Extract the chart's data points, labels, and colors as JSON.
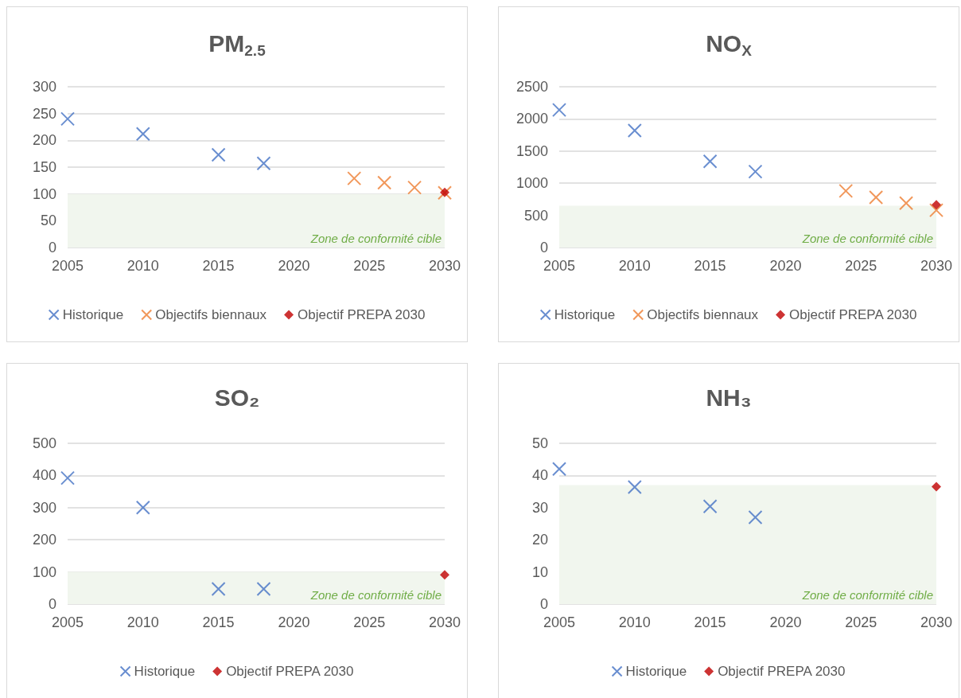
{
  "chart_data": [
    {
      "type": "scatter",
      "title": "PM$_{2.5}$",
      "xlim": [
        2005,
        2030
      ],
      "xticks": [
        2005,
        2010,
        2015,
        2020,
        2025,
        2030
      ],
      "ylim": [
        0,
        300
      ],
      "yticks": [
        0,
        50,
        100,
        150,
        200,
        250,
        300
      ],
      "grid": "y",
      "legend": "bottom",
      "bands": [
        {
          "axis": "y",
          "from": 0,
          "to": 100,
          "label": "Zone de conformité cible",
          "color": "#f1f6ee"
        }
      ],
      "series": [
        {
          "name": "Historique",
          "color": "#4472c4",
          "marker": "cross",
          "x": [
            2005,
            2010,
            2015,
            2018
          ],
          "values": [
            240,
            212,
            173,
            157
          ]
        },
        {
          "name": "Objectifs biennaux",
          "color": "#ed7d31",
          "marker": "cross",
          "x": [
            2024,
            2026,
            2028,
            2030
          ],
          "values": [
            129,
            121,
            112,
            102
          ]
        },
        {
          "name": "Objectif PREPA 2030",
          "color": "#c00000",
          "marker": "diamond",
          "x": [
            2030
          ],
          "values": [
            103
          ]
        }
      ]
    },
    {
      "type": "scatter",
      "title": "NO$_{X}$",
      "xlim": [
        2005,
        2030
      ],
      "xticks": [
        2005,
        2010,
        2015,
        2020,
        2025,
        2030
      ],
      "ylim": [
        0,
        2500
      ],
      "yticks": [
        0,
        500,
        1000,
        1500,
        2000,
        2500
      ],
      "grid": "y",
      "legend": "bottom",
      "bands": [
        {
          "axis": "y",
          "from": 0,
          "to": 650,
          "label": "Zone de conformité cible",
          "color": "#f1f6ee"
        }
      ],
      "series": [
        {
          "name": "Historique",
          "color": "#4472c4",
          "marker": "cross",
          "x": [
            2005,
            2010,
            2015,
            2018
          ],
          "values": [
            2140,
            1820,
            1340,
            1180
          ]
        },
        {
          "name": "Objectifs biennaux",
          "color": "#ed7d31",
          "marker": "cross",
          "x": [
            2024,
            2026,
            2028,
            2030
          ],
          "values": [
            880,
            780,
            690,
            580
          ]
        },
        {
          "name": "Objectif PREPA 2030",
          "color": "#c00000",
          "marker": "diamond",
          "x": [
            2030
          ],
          "values": [
            664
          ]
        }
      ]
    },
    {
      "type": "scatter",
      "title": "SO₂",
      "xlim": [
        2005,
        2030
      ],
      "xticks": [
        2005,
        2010,
        2015,
        2020,
        2025,
        2030
      ],
      "ylim": [
        0,
        500
      ],
      "yticks": [
        0,
        100,
        200,
        300,
        400,
        500
      ],
      "grid": "y",
      "legend": "bottom",
      "bands": [
        {
          "axis": "y",
          "from": 0,
          "to": 100,
          "label": "Zone de conformité cible",
          "color": "#f1f6ee"
        }
      ],
      "series": [
        {
          "name": "Historique",
          "color": "#4472c4",
          "marker": "cross",
          "x": [
            2005,
            2010,
            2015,
            2018
          ],
          "values": [
            392,
            300,
            47,
            47
          ]
        },
        {
          "name": "Objectif PREPA 2030",
          "color": "#c00000",
          "marker": "diamond",
          "x": [
            2030
          ],
          "values": [
            91
          ]
        }
      ]
    },
    {
      "type": "scatter",
      "title": "NH₃",
      "xlim": [
        2005,
        2030
      ],
      "xticks": [
        2005,
        2010,
        2015,
        2020,
        2025,
        2030
      ],
      "ylim": [
        0,
        50
      ],
      "yticks": [
        0,
        10,
        20,
        30,
        40,
        50
      ],
      "grid": "y",
      "legend": "bottom",
      "bands": [
        {
          "axis": "y",
          "from": 0,
          "to": 37,
          "label": "Zone de conformité cible",
          "color": "#f1f6ee"
        }
      ],
      "series": [
        {
          "name": "Historique",
          "color": "#4472c4",
          "marker": "cross",
          "x": [
            2005,
            2010,
            2015,
            2018
          ],
          "values": [
            42,
            36.4,
            30.4,
            27
          ]
        },
        {
          "name": "Objectif PREPA 2030",
          "color": "#c00000",
          "marker": "diamond",
          "x": [
            2030
          ],
          "values": [
            36.5
          ]
        }
      ]
    }
  ]
}
